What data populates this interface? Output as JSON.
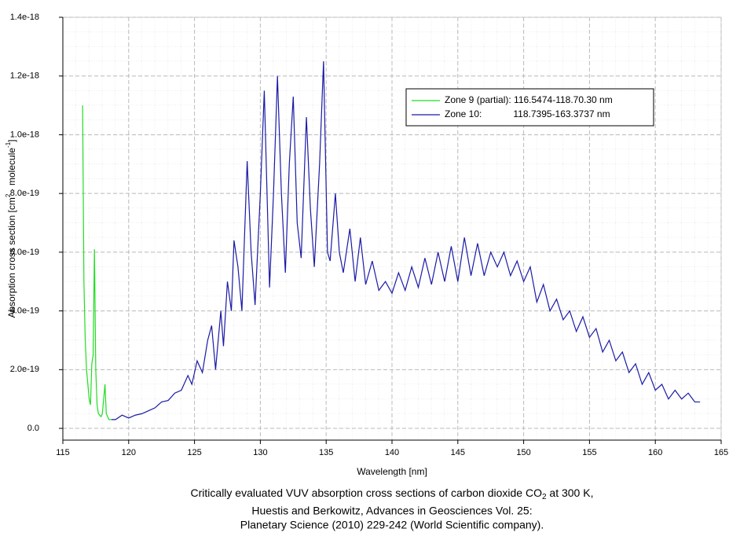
{
  "chart_data": {
    "type": "line",
    "title_line1": [
      "Critically evaluated VUV absorption cross sections of carbon dioxide CO",
      "2",
      " at 300 K,"
    ],
    "title_line2": "Huestis and Berkowitz, Advances in Geosciences Vol. 25:",
    "title_line3": "Planetary Science (2010) 229-242 (World Scientific company).",
    "x_label": "Wavelength [nm]",
    "y_label": [
      "Absorption cross section [cm",
      "2",
      " · molecule",
      "-1",
      "]"
    ],
    "xlim": [
      115,
      165
    ],
    "xticks": [
      115,
      120,
      125,
      130,
      135,
      140,
      145,
      150,
      155,
      160,
      165
    ],
    "ylim": [
      -4e-20,
      1.4e-18
    ],
    "yticks": [
      {
        "value": 0,
        "label": "0.0"
      },
      {
        "value": 2e-19,
        "label": "2.0e-19"
      },
      {
        "value": 4e-19,
        "label": "4.0e-19"
      },
      {
        "value": 6e-19,
        "label": "6.0e-19"
      },
      {
        "value": 8e-19,
        "label": "8.0e-19"
      },
      {
        "value": 1e-18,
        "label": "1.0e-18"
      },
      {
        "value": 1.2e-18,
        "label": "1.2e-18"
      },
      {
        "value": 1.4e-18,
        "label": "1.4e-18"
      }
    ],
    "grid": true,
    "legend": "upper right",
    "series": [
      {
        "name": "Zone 9 (partial): 116.5474-118.70.30 nm",
        "color": "#22dd22",
        "x": [
          116.5,
          116.6,
          116.7,
          116.8,
          116.9,
          117.0,
          117.1,
          117.2,
          117.3,
          117.4,
          117.5,
          117.6,
          117.7,
          117.9,
          118.0,
          118.2,
          118.3,
          118.5,
          118.7
        ],
        "values": [
          1.1e-18,
          5e-19,
          3e-19,
          2e-19,
          1.5e-19,
          1e-19,
          8e-20,
          2.2e-19,
          2.5e-19,
          6.1e-19,
          2e-19,
          8e-20,
          5e-20,
          4e-20,
          5e-20,
          1.5e-19,
          5e-20,
          3e-20,
          3e-20
        ]
      },
      {
        "name": "Zone 10:            118.7395-163.3737 nm",
        "color": "#1a1aa6",
        "x": [
          118.7,
          119.0,
          119.5,
          120.0,
          120.5,
          121.0,
          121.5,
          122.0,
          122.5,
          123.0,
          123.5,
          124.0,
          124.5,
          124.8,
          125.2,
          125.6,
          126.0,
          126.3,
          126.6,
          127.0,
          127.2,
          127.5,
          127.8,
          128.0,
          128.3,
          128.6,
          129.0,
          129.3,
          129.6,
          130.0,
          130.3,
          130.7,
          131.0,
          131.3,
          131.6,
          131.9,
          132.2,
          132.5,
          132.8,
          133.1,
          133.5,
          133.8,
          134.1,
          134.5,
          134.8,
          135.1,
          135.3,
          135.7,
          136.0,
          136.3,
          136.8,
          137.2,
          137.6,
          138.0,
          138.5,
          139.0,
          139.5,
          140.0,
          140.5,
          141.0,
          141.5,
          142.0,
          142.5,
          143.0,
          143.5,
          144.0,
          144.5,
          145.0,
          145.5,
          146.0,
          146.5,
          147.0,
          147.5,
          148.0,
          148.5,
          149.0,
          149.5,
          150.0,
          150.5,
          151.0,
          151.5,
          152.0,
          152.5,
          153.0,
          153.5,
          154.0,
          154.5,
          155.0,
          155.5,
          156.0,
          156.5,
          157.0,
          157.5,
          158.0,
          158.5,
          159.0,
          159.5,
          160.0,
          160.5,
          161.0,
          161.5,
          162.0,
          162.5,
          163.0,
          163.4
        ],
        "values": [
          3e-20,
          3e-20,
          4.5e-20,
          3.5e-20,
          4.5e-20,
          5e-20,
          6e-20,
          7e-20,
          9e-20,
          9.5e-20,
          1.2e-19,
          1.3e-19,
          1.8e-19,
          1.5e-19,
          2.3e-19,
          1.9e-19,
          3e-19,
          3.5e-19,
          2e-19,
          4e-19,
          2.8e-19,
          5e-19,
          4e-19,
          6.4e-19,
          5.5e-19,
          4e-19,
          9.1e-19,
          6e-19,
          4.2e-19,
          8e-19,
          1.15e-18,
          4.8e-19,
          8e-19,
          1.2e-18,
          8e-19,
          5.3e-19,
          9e-19,
          1.13e-18,
          7e-19,
          5.8e-19,
          1.06e-18,
          7.5e-19,
          5.5e-19,
          9e-19,
          1.25e-18,
          6e-19,
          5.7e-19,
          8e-19,
          6e-19,
          5.3e-19,
          6.8e-19,
          5e-19,
          6.5e-19,
          4.9e-19,
          5.7e-19,
          4.7e-19,
          5e-19,
          4.6e-19,
          5.3e-19,
          4.7e-19,
          5.5e-19,
          4.8e-19,
          5.8e-19,
          4.9e-19,
          6e-19,
          5e-19,
          6.2e-19,
          5e-19,
          6.5e-19,
          5.2e-19,
          6.3e-19,
          5.2e-19,
          6e-19,
          5.5e-19,
          6e-19,
          5.2e-19,
          5.7e-19,
          5e-19,
          5.5e-19,
          4.3e-19,
          4.9e-19,
          4e-19,
          4.4e-19,
          3.7e-19,
          4e-19,
          3.3e-19,
          3.8e-19,
          3.1e-19,
          3.4e-19,
          2.6e-19,
          3e-19,
          2.3e-19,
          2.6e-19,
          1.9e-19,
          2.2e-19,
          1.5e-19,
          1.9e-19,
          1.3e-19,
          1.5e-19,
          1e-19,
          1.3e-19,
          1e-19,
          1.2e-19,
          9e-20,
          9e-20
        ]
      }
    ]
  }
}
